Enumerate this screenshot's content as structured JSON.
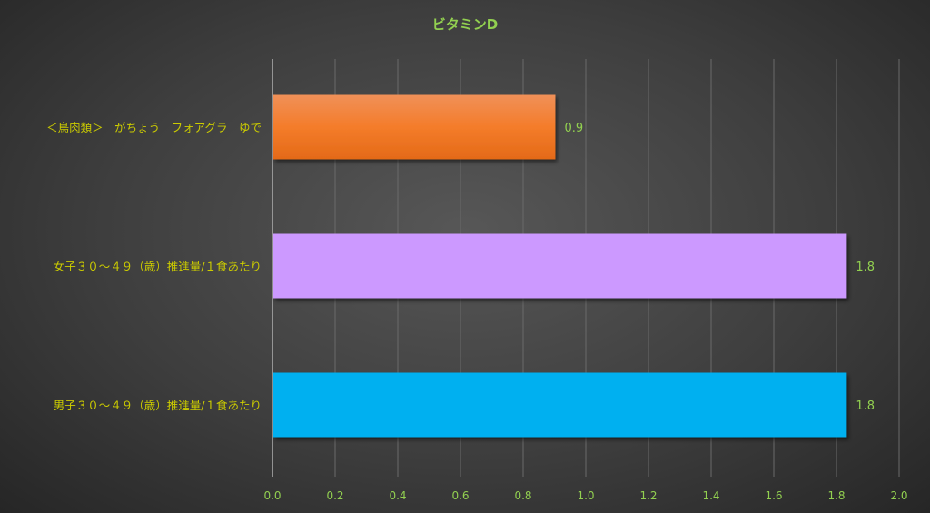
{
  "chart_data": {
    "type": "bar",
    "orientation": "horizontal",
    "title": "ビタミンD",
    "categories": [
      "＜鳥肉類＞　がちょう　フォアグラ　ゆで",
      "女子３０～４９（歳）推進量/１食あたり",
      "男子３０～４９（歳）推進量/１食あたり"
    ],
    "values": [
      0.9,
      1.83,
      1.83
    ],
    "data_labels": [
      "0.9",
      "1.8",
      "1.8"
    ],
    "bar_colors": [
      "#ed7d31",
      "#cc99ff",
      "#00b0f0"
    ],
    "xlim": [
      0,
      2.0
    ],
    "xticks": [
      "0.0",
      "0.2",
      "0.4",
      "0.6",
      "0.8",
      "1.0",
      "1.2",
      "1.4",
      "1.6",
      "1.8",
      "2.0"
    ],
    "grid": true,
    "legend": "none",
    "colors": {
      "title": "#92d050",
      "tick_labels": "#92d050",
      "category_labels": "#cccc00",
      "data_labels": "#92d050"
    }
  }
}
